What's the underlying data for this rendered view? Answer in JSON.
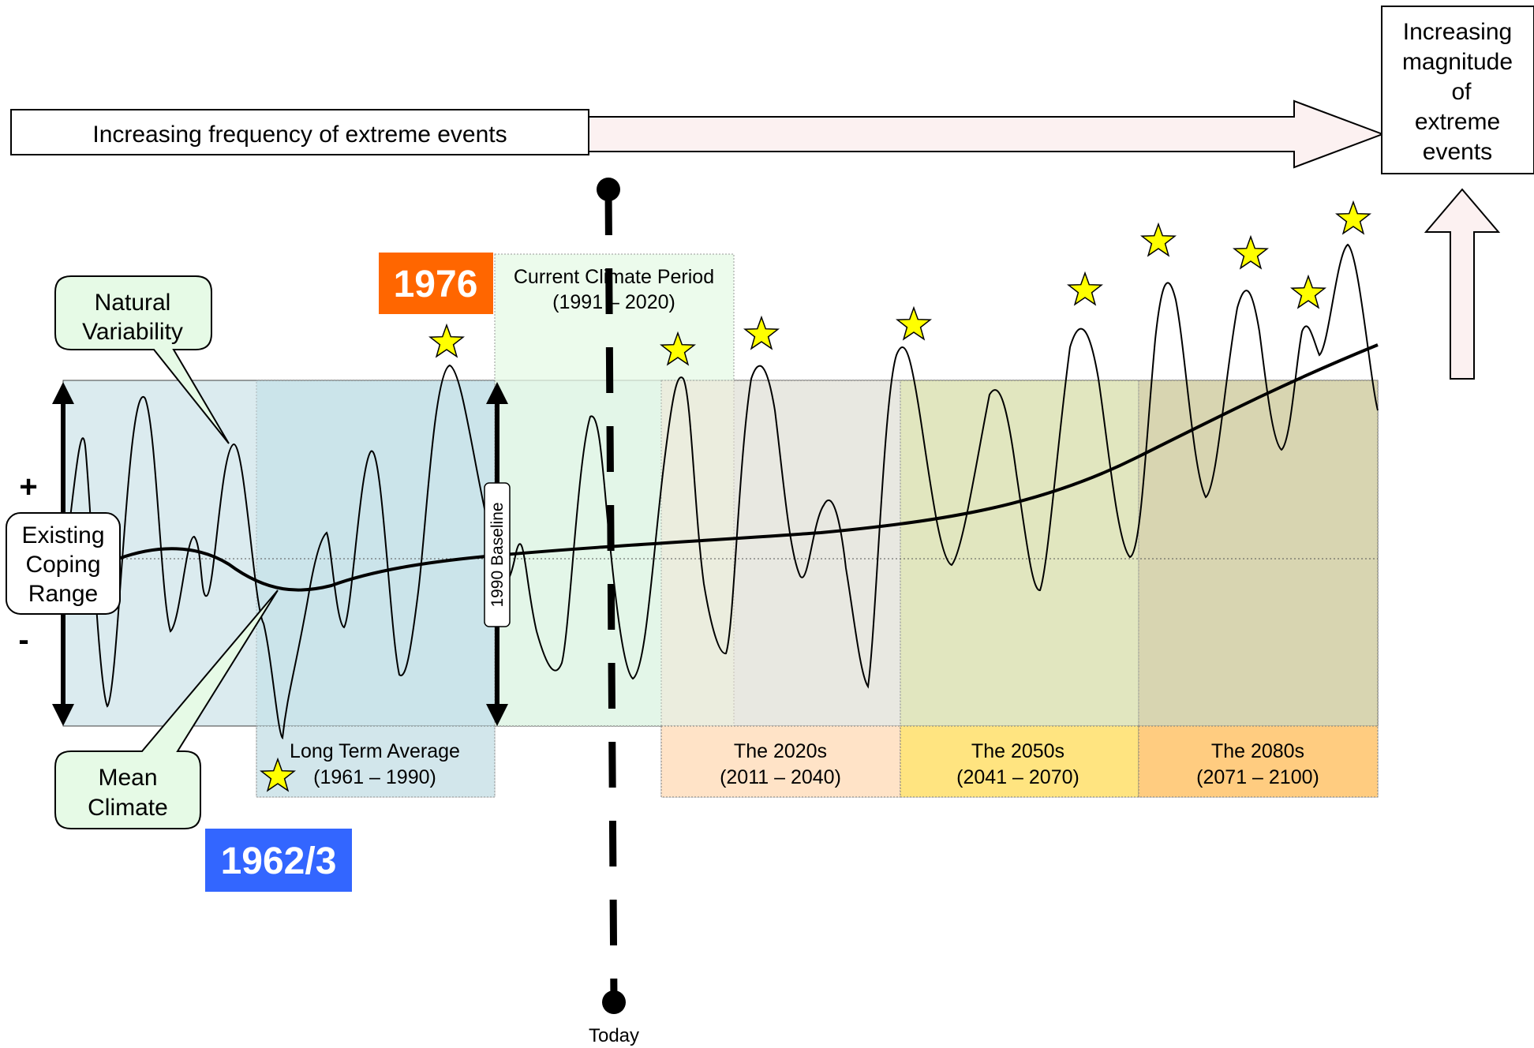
{
  "frequency_arrow": {
    "label": "Increasing frequency of extreme events"
  },
  "magnitude_box": {
    "lines": [
      "Increasing",
      "magnitude",
      "of",
      "extreme",
      "events"
    ]
  },
  "callouts": {
    "natural_variability": {
      "lines": [
        "Natural",
        "Variability"
      ]
    },
    "mean_climate": {
      "lines": [
        "Mean",
        "Climate"
      ]
    },
    "coping_range": {
      "lines": [
        "Existing",
        "Coping",
        "Range"
      ]
    }
  },
  "signs": {
    "plus": "+",
    "minus": "-"
  },
  "year_badges": {
    "y1976": {
      "text": "1976",
      "color": "#FF6600"
    },
    "y1962": {
      "text": "1962/3",
      "color": "#3366FF"
    }
  },
  "periods": {
    "current": {
      "lines": [
        "Current Climate Period",
        "(1991 – 2020)"
      ],
      "color": "#E6FAE6"
    },
    "long_term": {
      "lines": [
        "Long Term Average",
        "(1961 – 1990)"
      ],
      "color": "#CFE5EA"
    },
    "p2020s": {
      "lines": [
        "The 2020s",
        "(2011 – 2040)"
      ],
      "color": "#FFE3C7"
    },
    "p2050s": {
      "lines": [
        "The 2050s",
        "(2041 – 2070)"
      ],
      "color": "#FFE480"
    },
    "p2080s": {
      "lines": [
        "The 2080s",
        "(2071 – 2100)"
      ],
      "color": "#FFCC80"
    }
  },
  "baseline_label": "1990 Baseline",
  "today_label": "Today",
  "colors": {
    "star_fill": "#FFFF00",
    "coping_band": "#CFE5EA",
    "arrow_fill": "#FCF1F1"
  }
}
